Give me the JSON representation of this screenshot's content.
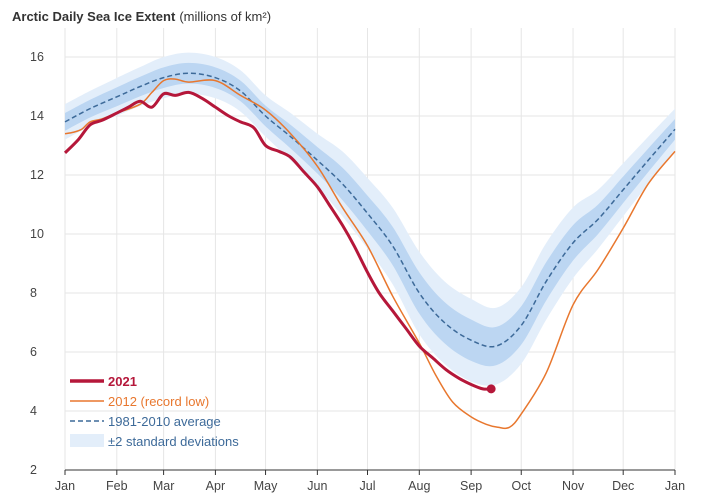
{
  "chart_data": {
    "type": "line",
    "title": "Arctic Daily Sea Ice Extent",
    "subtitle": "(millions of km²)",
    "xlabel": "",
    "ylabel": "",
    "x_unit": "day of year",
    "xlim": [
      0,
      365
    ],
    "ylim": [
      2,
      16.8
    ],
    "grid": true,
    "legend_placement": "bottom-left",
    "x_ticks": [
      {
        "label": "Jan",
        "day": 0
      },
      {
        "label": "Feb",
        "day": 31
      },
      {
        "label": "Mar",
        "day": 59
      },
      {
        "label": "Apr",
        "day": 90
      },
      {
        "label": "May",
        "day": 120
      },
      {
        "label": "Jun",
        "day": 151
      },
      {
        "label": "Jul",
        "day": 181
      },
      {
        "label": "Aug",
        "day": 212
      },
      {
        "label": "Sep",
        "day": 243
      },
      {
        "label": "Oct",
        "day": 273
      },
      {
        "label": "Nov",
        "day": 304
      },
      {
        "label": "Dec",
        "day": 334
      },
      {
        "label": "Jan",
        "day": 365
      }
    ],
    "y_ticks": [
      2,
      4,
      6,
      8,
      10,
      12,
      14,
      16
    ],
    "average": {
      "name": "1981-2010 average",
      "color": "#3d6a99",
      "x": [
        0,
        15,
        31,
        45,
        59,
        74,
        90,
        105,
        120,
        135,
        151,
        166,
        181,
        196,
        212,
        227,
        243,
        258,
        273,
        288,
        304,
        319,
        334,
        349,
        365
      ],
      "y": [
        13.8,
        14.25,
        14.65,
        15.0,
        15.3,
        15.45,
        15.3,
        14.85,
        14.0,
        13.3,
        12.5,
        11.7,
        10.7,
        9.6,
        8.0,
        7.0,
        6.4,
        6.2,
        6.9,
        8.4,
        9.7,
        10.5,
        11.5,
        12.5,
        13.55
      ],
      "sd": [
        0.3,
        0.3,
        0.32,
        0.33,
        0.35,
        0.35,
        0.35,
        0.35,
        0.35,
        0.4,
        0.45,
        0.55,
        0.6,
        0.65,
        0.7,
        0.7,
        0.7,
        0.65,
        0.65,
        0.65,
        0.6,
        0.5,
        0.45,
        0.4,
        0.35
      ]
    },
    "band_label": "±2 standard deviations",
    "band_colors": {
      "outer": "#e3eefa",
      "inner": "#bcd6f2"
    },
    "series": [
      {
        "name": "2012 (record low)",
        "color": "#e8772e",
        "x": [
          0,
          5,
          10,
          15,
          22,
          31,
          45,
          52,
          59,
          66,
          74,
          90,
          105,
          120,
          135,
          151,
          166,
          181,
          196,
          212,
          222,
          232,
          243,
          252,
          259,
          266,
          273,
          288,
          304,
          319,
          334,
          349,
          365
        ],
        "y": [
          13.4,
          13.45,
          13.55,
          13.8,
          13.9,
          14.1,
          14.4,
          14.8,
          15.2,
          15.25,
          15.15,
          15.2,
          14.7,
          14.2,
          13.4,
          12.3,
          10.9,
          9.6,
          7.9,
          6.3,
          5.2,
          4.3,
          3.8,
          3.55,
          3.45,
          3.45,
          3.9,
          5.3,
          7.6,
          8.8,
          10.2,
          11.7,
          12.8
        ]
      },
      {
        "name": "2021",
        "color": "#b5173a",
        "x": [
          0,
          8,
          15,
          22,
          31,
          38,
          45,
          52,
          59,
          66,
          74,
          82,
          90,
          98,
          105,
          113,
          120,
          128,
          135,
          143,
          151,
          158,
          166,
          173,
          181,
          188,
          196,
          204,
          212,
          220,
          228,
          236,
          243,
          250,
          255
        ],
        "y": [
          12.75,
          13.2,
          13.7,
          13.85,
          14.1,
          14.3,
          14.5,
          14.3,
          14.75,
          14.7,
          14.8,
          14.6,
          14.3,
          14.0,
          13.8,
          13.6,
          13.0,
          12.8,
          12.6,
          12.1,
          11.6,
          11.0,
          10.3,
          9.6,
          8.7,
          8.0,
          7.4,
          6.8,
          6.2,
          5.8,
          5.4,
          5.1,
          4.9,
          4.75,
          4.75
        ]
      }
    ]
  }
}
